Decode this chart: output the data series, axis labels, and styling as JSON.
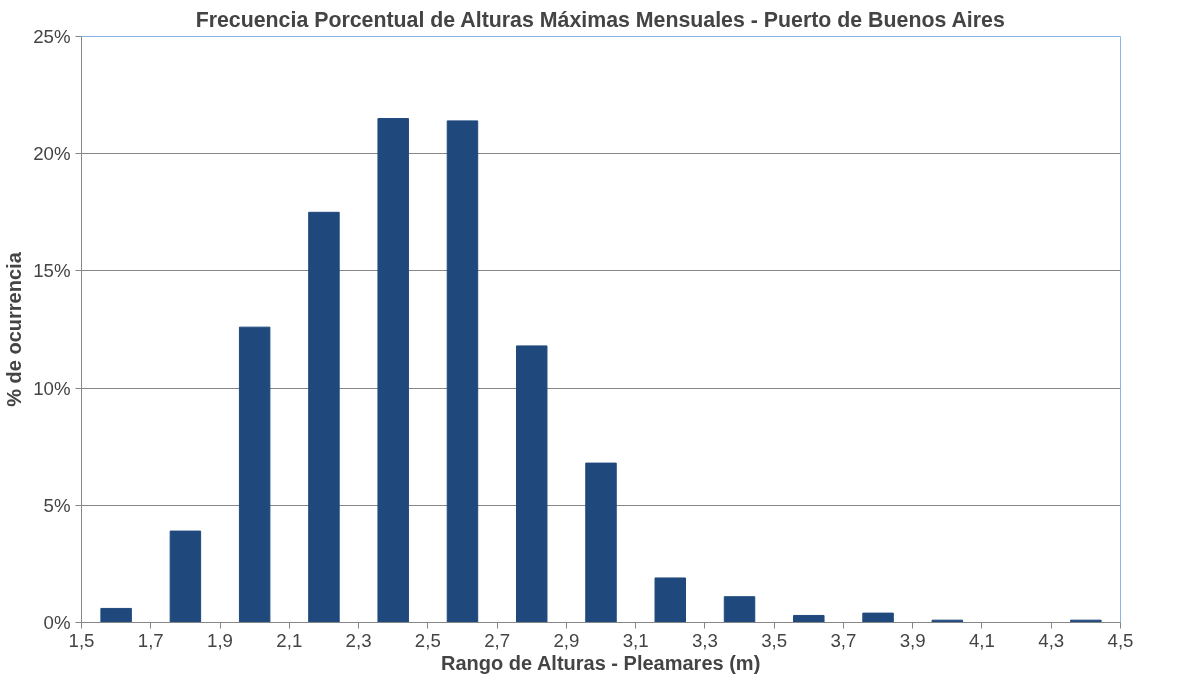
{
  "chart_data": {
    "type": "histogram",
    "title": "Frecuencia Porcentual de Alturas Máximas Mensuales - Puerto de Buenos Aires",
    "xlabel": "Rango de Alturas - Pleamares (m)",
    "ylabel": "% de ocurrencia",
    "bins": [
      1.5,
      1.7,
      1.9,
      2.1,
      2.3,
      2.5,
      2.7,
      2.9,
      3.1,
      3.3,
      3.5,
      3.7,
      3.9,
      4.1,
      4.3,
      4.5
    ],
    "values": [
      0.6,
      3.9,
      12.6,
      17.5,
      21.5,
      21.4,
      11.8,
      6.8,
      1.9,
      1.1,
      0.3,
      0.4,
      0.1,
      0,
      0.1
    ],
    "color": "#1f497d",
    "xlim": [
      1.5,
      4.5
    ],
    "xticks": [
      {
        "value": 1.5,
        "label": "1,5"
      },
      {
        "value": 1.7,
        "label": "1,7"
      },
      {
        "value": 1.9,
        "label": "1,9"
      },
      {
        "value": 2.1,
        "label": "2,1"
      },
      {
        "value": 2.3,
        "label": "2,3"
      },
      {
        "value": 2.5,
        "label": "2,5"
      },
      {
        "value": 2.7,
        "label": "2,7"
      },
      {
        "value": 2.9,
        "label": "2,9"
      },
      {
        "value": 3.1,
        "label": "3,1"
      },
      {
        "value": 3.3,
        "label": "3,3"
      },
      {
        "value": 3.5,
        "label": "3,5"
      },
      {
        "value": 3.7,
        "label": "3,7"
      },
      {
        "value": 3.9,
        "label": "3,9"
      },
      {
        "value": 4.1,
        "label": "4,1"
      },
      {
        "value": 4.3,
        "label": "4,3"
      },
      {
        "value": 4.5,
        "label": "4,5"
      }
    ],
    "ylim": [
      0,
      25
    ],
    "yticks": [
      {
        "value": 0,
        "label": "0%"
      },
      {
        "value": 5,
        "label": "5%"
      },
      {
        "value": 10,
        "label": "10%"
      },
      {
        "value": 15,
        "label": "15%"
      },
      {
        "value": 20,
        "label": "20%"
      },
      {
        "value": 25,
        "label": "25%"
      }
    ],
    "grid": "y"
  }
}
